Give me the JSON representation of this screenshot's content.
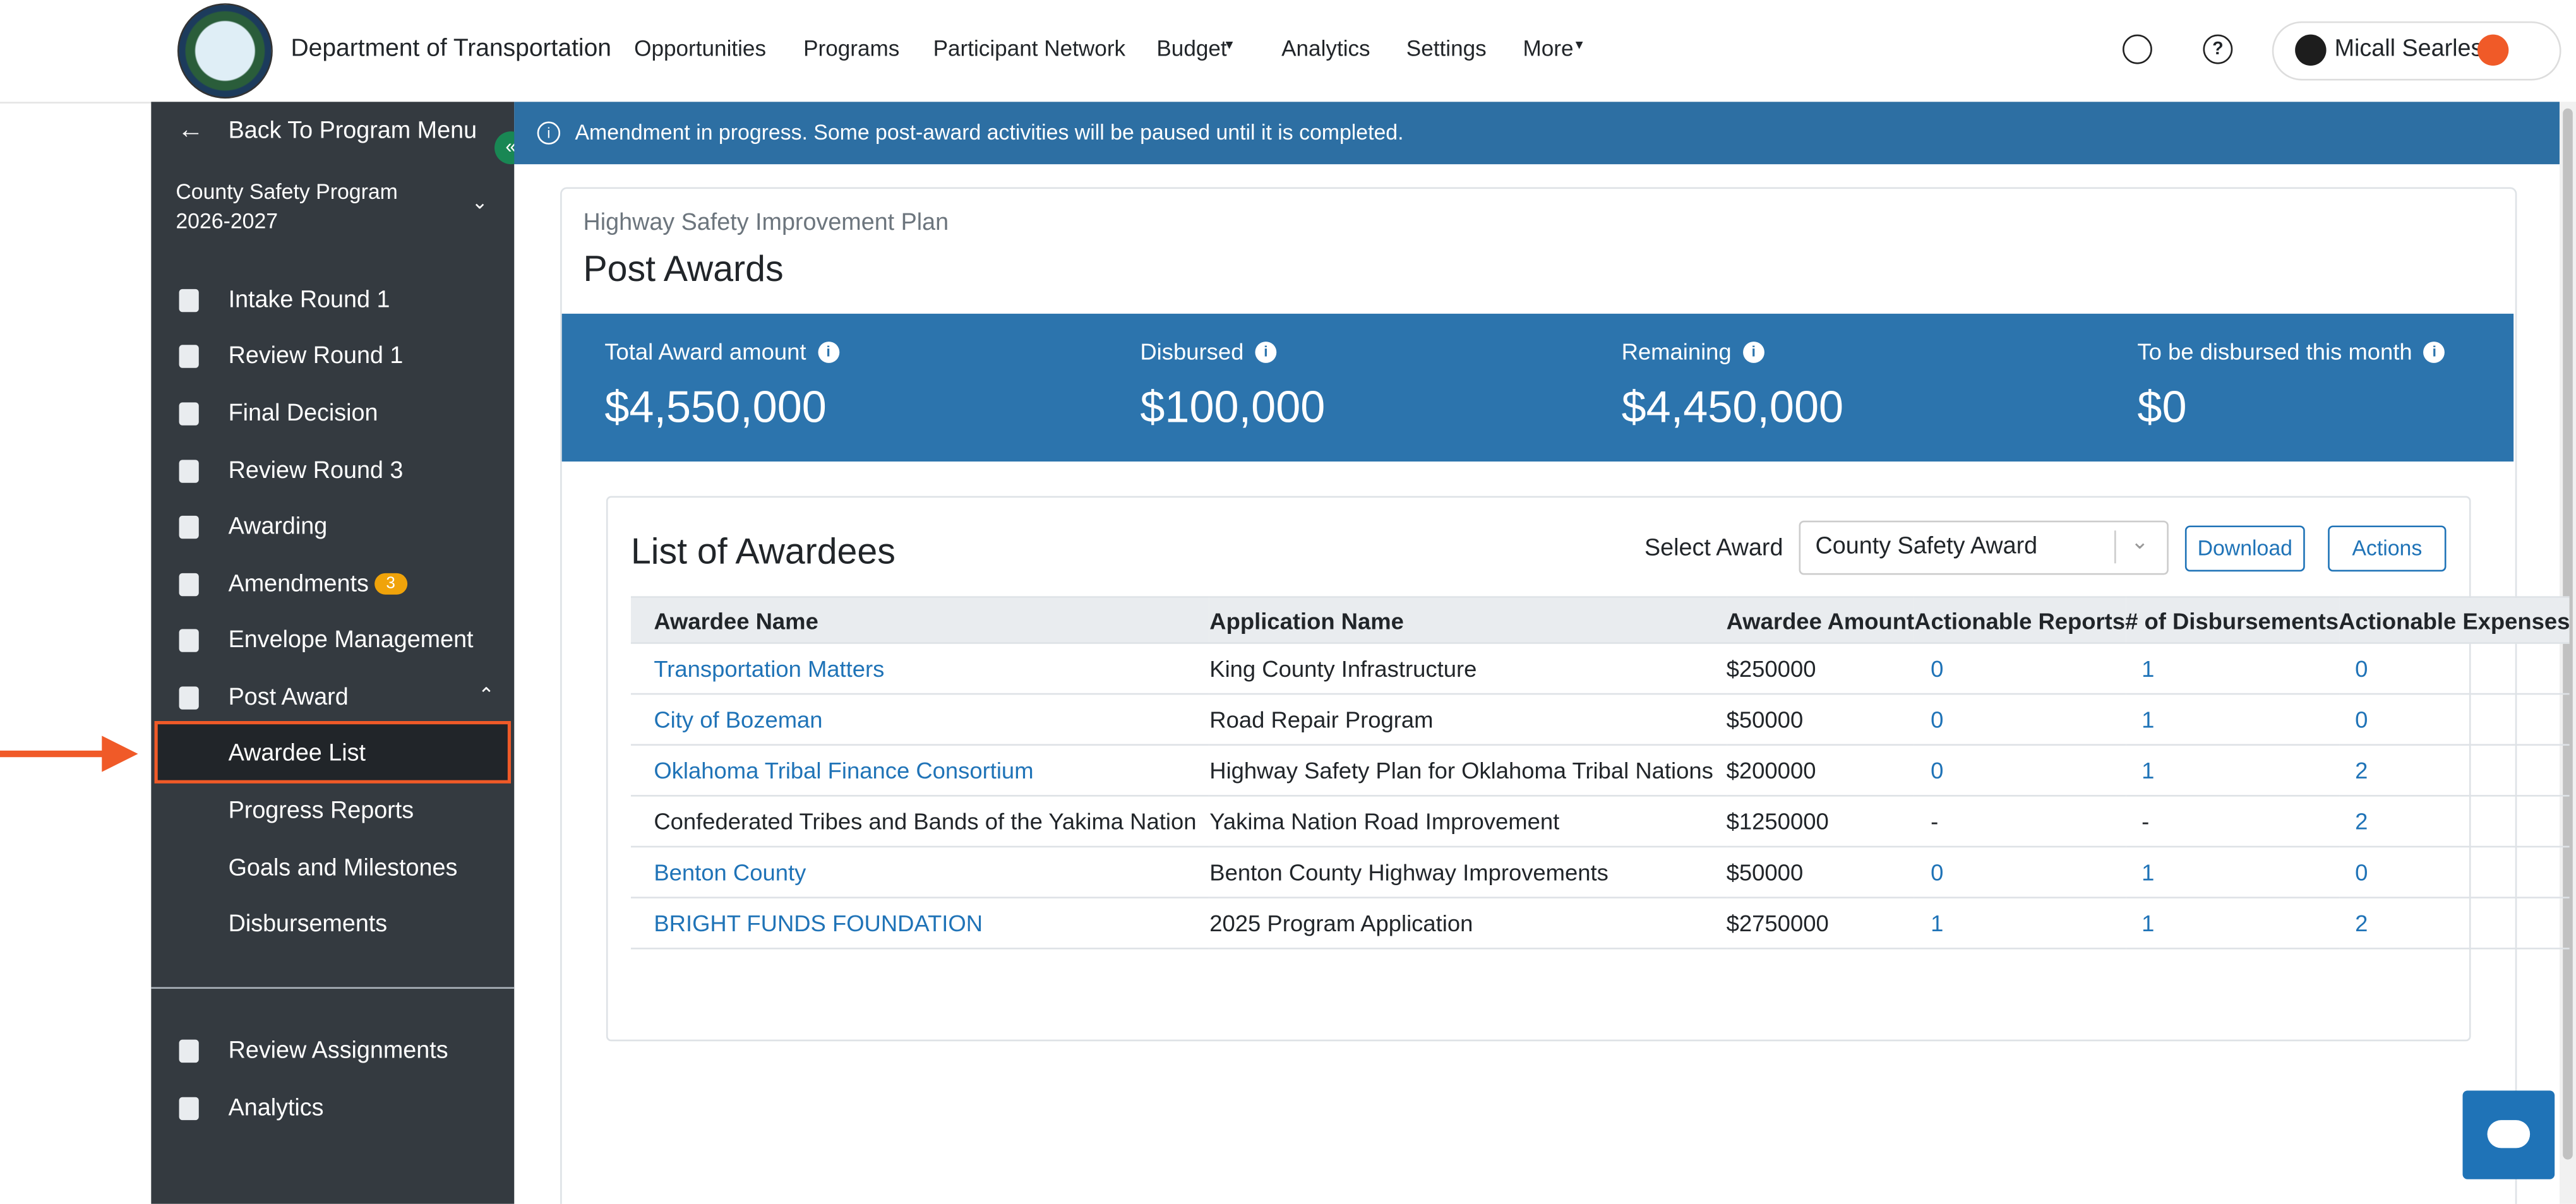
{
  "header": {
    "org": "Department of Transportation",
    "nav": [
      "Opportunities",
      "Programs",
      "Participant Network",
      "Budget",
      "Analytics",
      "Settings",
      "More"
    ],
    "user": "Micall Searles"
  },
  "sidebar": {
    "back": "Back To Program Menu",
    "program": "County Safety Program 2026-2027",
    "items": [
      {
        "label": "Intake Round 1"
      },
      {
        "label": "Review Round 1"
      },
      {
        "label": "Final Decision"
      },
      {
        "label": "Review Round 3"
      },
      {
        "label": "Awarding"
      },
      {
        "label": "Amendments",
        "badge": "3"
      },
      {
        "label": "Envelope Management"
      },
      {
        "label": "Post Award"
      }
    ],
    "sub_items": [
      "Awardee List",
      "Progress Reports",
      "Goals and Milestones",
      "Disbursements"
    ],
    "bottom": [
      "Review Assignments",
      "Analytics"
    ]
  },
  "banner": "Amendment in progress. Some post-award activities will be paused until it is completed.",
  "page": {
    "subtitle": "Highway Safety Improvement Plan",
    "title": "Post Awards",
    "stats": [
      {
        "label": "Total Award amount",
        "value": "$4,550,000"
      },
      {
        "label": "Disbursed",
        "value": "$100,000"
      },
      {
        "label": "Remaining",
        "value": "$4,450,000"
      },
      {
        "label": "To be disbursed this month",
        "value": "$0"
      }
    ]
  },
  "awardees": {
    "title": "List of Awardees",
    "select_label": "Select Award",
    "select_value": "County Safety Award",
    "download": "Download",
    "actions": "Actions",
    "columns": [
      "Awardee Name",
      "Application Name",
      "Awardee Amount",
      "Actionable Reports",
      "# of Disbursements",
      "Actionable Expenses"
    ],
    "rows": [
      {
        "linked": true,
        "cells": [
          "Transportation Matters",
          "King County Infrastructure",
          "$250000",
          0,
          1,
          0
        ]
      },
      {
        "linked": true,
        "cells": [
          "City of Bozeman",
          "Road Repair Program",
          "$50000",
          0,
          1,
          0
        ]
      },
      {
        "linked": true,
        "cells": [
          "Oklahoma Tribal Finance Consortium",
          "Highway Safety Plan for Oklahoma Tribal Nations",
          "$200000",
          0,
          1,
          2
        ]
      },
      {
        "linked": false,
        "cells": [
          "Confederated Tribes and Bands of the Yakima Nation",
          "Yakima Nation Road Improvement",
          "$1250000",
          "-",
          "-",
          2
        ]
      },
      {
        "linked": true,
        "cells": [
          "Benton County",
          "Benton County Highway Improvements",
          "$50000",
          0,
          1,
          0
        ]
      },
      {
        "linked": true,
        "cells": [
          "BRIGHT FUNDS FOUNDATION",
          "2025 Program Application",
          "$2750000",
          1,
          1,
          2
        ]
      }
    ]
  }
}
